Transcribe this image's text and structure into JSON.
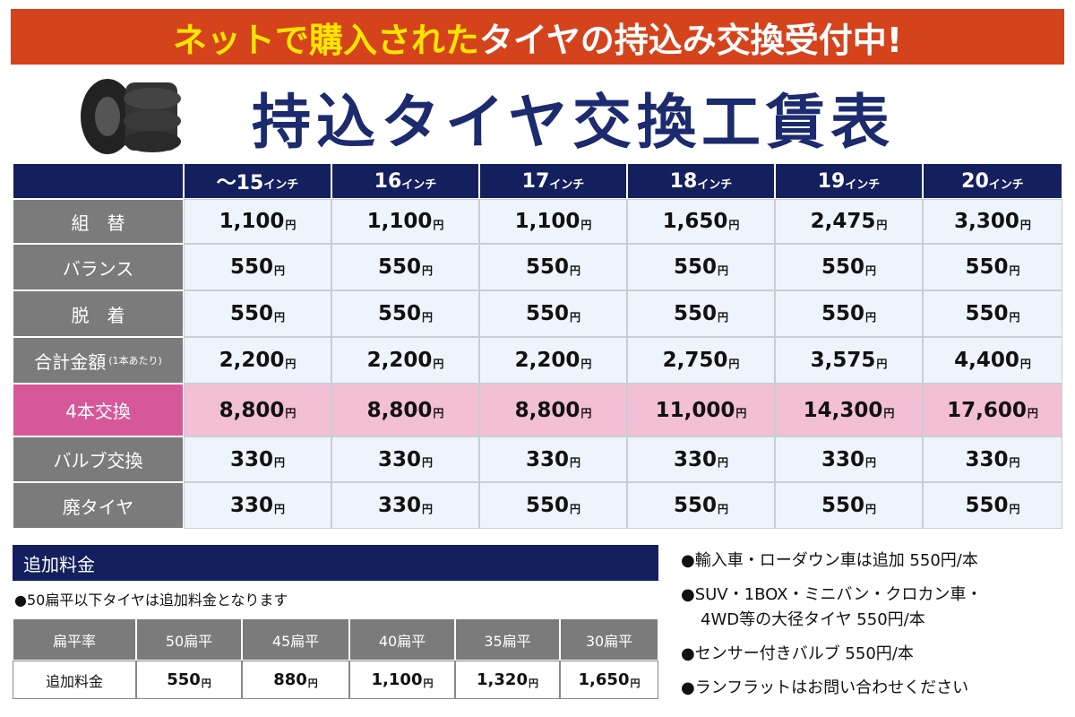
{
  "banner": {
    "part1": "ネットで購入された",
    "part2": "タイヤの持込み交換受付中!"
  },
  "title": "持込タイヤ交換工賃表",
  "currency_unit": "円",
  "main_table": {
    "size_unit": "インチ",
    "columns": [
      "〜15",
      "16",
      "17",
      "18",
      "19",
      "20"
    ],
    "rows": [
      {
        "label": "組　替",
        "prices": [
          "1,100",
          "1,100",
          "1,100",
          "1,650",
          "2,475",
          "3,300"
        ]
      },
      {
        "label": "バランス",
        "prices": [
          "550",
          "550",
          "550",
          "550",
          "550",
          "550"
        ]
      },
      {
        "label": "脱　着",
        "prices": [
          "550",
          "550",
          "550",
          "550",
          "550",
          "550"
        ]
      },
      {
        "label": "合計金額",
        "note": "(1本あたり)",
        "prices": [
          "2,200",
          "2,200",
          "2,200",
          "2,750",
          "3,575",
          "4,400"
        ]
      },
      {
        "label": "4本交換",
        "highlight": true,
        "prices": [
          "8,800",
          "8,800",
          "8,800",
          "11,000",
          "14,300",
          "17,600"
        ]
      },
      {
        "label": "バルブ交換",
        "prices": [
          "330",
          "330",
          "330",
          "330",
          "330",
          "330"
        ]
      },
      {
        "label": "廃タイヤ",
        "prices": [
          "330",
          "330",
          "550",
          "550",
          "550",
          "550"
        ]
      }
    ]
  },
  "extra": {
    "heading": "追加料金",
    "note": "●50扁平以下タイヤは追加料金となります",
    "header": [
      "扁平率",
      "50扁平",
      "45扁平",
      "40扁平",
      "35扁平",
      "30扁平"
    ],
    "row_label": "追加料金",
    "prices": [
      "550",
      "880",
      "1,100",
      "1,320",
      "1,650"
    ]
  },
  "notes": [
    [
      "●輸入車・ローダウン車は追加 550円/本"
    ],
    [
      "●SUV・1BOX・ミニバン・クロカン車・",
      "4WD等の大径タイヤ 550円/本"
    ],
    [
      "●センサー付きバルブ 550円/本"
    ],
    [
      "●ランフラットはお問い合わせください"
    ]
  ]
}
